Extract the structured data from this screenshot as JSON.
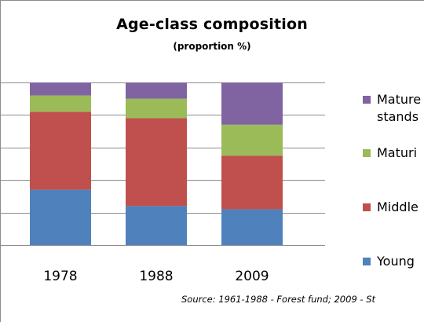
{
  "chart_data": {
    "type": "bar",
    "stacked": true,
    "title": "Age-class composition",
    "subtitle": "(proportion %)",
    "categories": [
      "1978",
      "1988",
      "2009"
    ],
    "ylim": [
      0,
      100
    ],
    "grid": true,
    "legend_position": "right",
    "series": [
      {
        "name": "Young",
        "color": "#4f81bd",
        "values": [
          34,
          24,
          22
        ]
      },
      {
        "name": "Middle",
        "color": "#c0504d",
        "values": [
          48,
          54,
          33
        ]
      },
      {
        "name": "Maturi",
        "color": "#9bbb59",
        "values": [
          10,
          12,
          19
        ]
      },
      {
        "name": "Mature stands",
        "color": "#8064a2",
        "values": [
          8,
          10,
          26
        ]
      }
    ],
    "source": "Source: 1961-1988 - Forest fund; 2009 - St"
  },
  "legend": {
    "items": [
      {
        "line1": "Mature",
        "line2": "stands",
        "color": "#8064a2"
      },
      {
        "line1": "Maturi",
        "line2": "",
        "color": "#9bbb59"
      },
      {
        "line1": "Middle",
        "line2": "",
        "color": "#c0504d"
      },
      {
        "line1": "Young",
        "line2": "",
        "color": "#4f81bd"
      }
    ]
  }
}
